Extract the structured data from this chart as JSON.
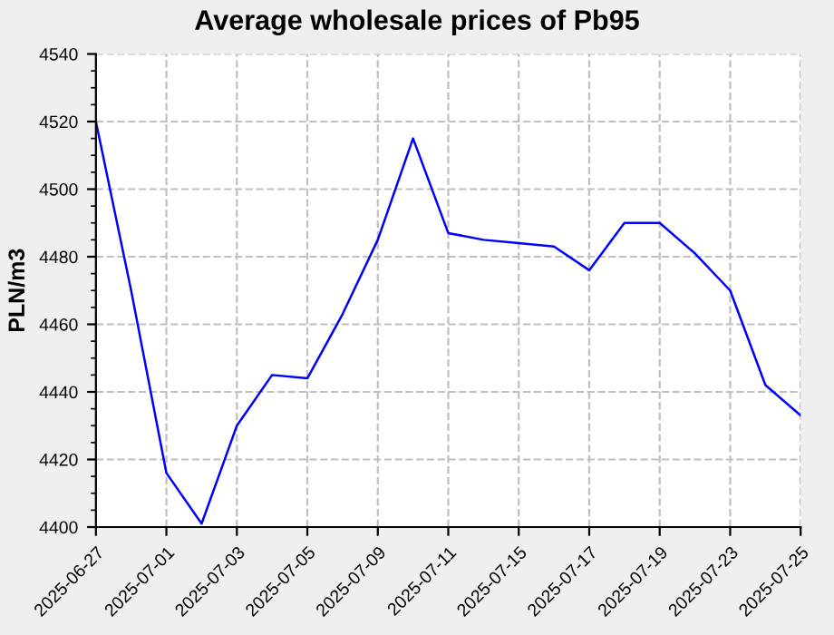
{
  "chart_data": {
    "type": "line",
    "title": "Average wholesale prices of Pb95",
    "ylabel": "PLN/m3",
    "categories": [
      "2025-06-27",
      null,
      "2025-07-01",
      null,
      "2025-07-03",
      null,
      "2025-07-05",
      null,
      "2025-07-09",
      null,
      "2025-07-11",
      null,
      "2025-07-15",
      null,
      "2025-07-17",
      null,
      "2025-07-19",
      null,
      "2025-07-23",
      null,
      "2025-07-25"
    ],
    "series": [
      {
        "color": "#0000ff",
        "values": [
          4520,
          4470,
          4416,
          4401,
          4430,
          4445,
          4444,
          4463,
          4485,
          4515,
          4487,
          4485,
          4484,
          4483,
          4476,
          4490,
          4490,
          4481,
          4470,
          4442,
          4433
        ]
      }
    ],
    "ylim": [
      4400,
      4540
    ],
    "yticks": [
      4400,
      4420,
      4440,
      4460,
      4480,
      4500,
      4520,
      4540
    ],
    "grid": true,
    "marker": "none",
    "line_style": "solid"
  }
}
